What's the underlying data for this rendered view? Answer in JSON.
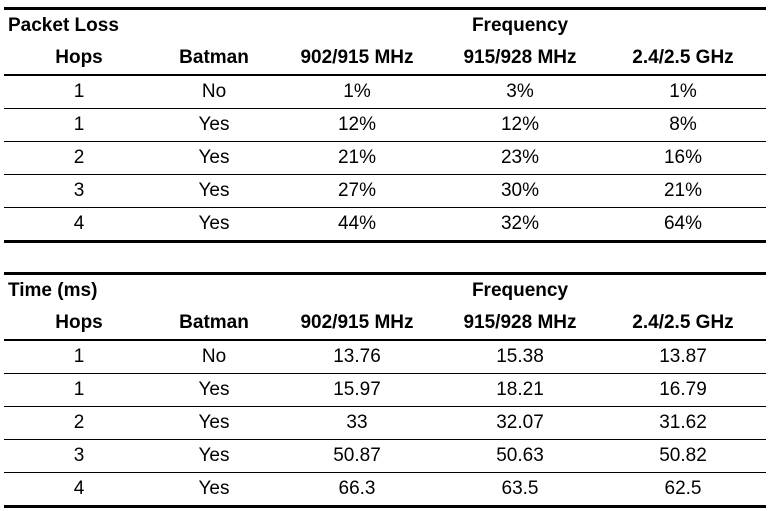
{
  "tables": [
    {
      "title": "Packet Loss",
      "group_header": "Frequency",
      "headers": [
        "Hops",
        "Batman",
        "902/915 MHz",
        "915/928 MHz",
        "2.4/2.5 GHz"
      ],
      "rows": [
        [
          "1",
          "No",
          "1%",
          "3%",
          "1%"
        ],
        [
          "1",
          "Yes",
          "12%",
          "12%",
          "8%"
        ],
        [
          "2",
          "Yes",
          "21%",
          "23%",
          "16%"
        ],
        [
          "3",
          "Yes",
          "27%",
          "30%",
          "21%"
        ],
        [
          "4",
          "Yes",
          "44%",
          "32%",
          "64%"
        ]
      ]
    },
    {
      "title": "Time (ms)",
      "group_header": "Frequency",
      "headers": [
        "Hops",
        "Batman",
        "902/915 MHz",
        "915/928 MHz",
        "2.4/2.5 GHz"
      ],
      "rows": [
        [
          "1",
          "No",
          "13.76",
          "15.38",
          "13.87"
        ],
        [
          "1",
          "Yes",
          "15.97",
          "18.21",
          "16.79"
        ],
        [
          "2",
          "Yes",
          "33",
          "32.07",
          "31.62"
        ],
        [
          "3",
          "Yes",
          "50.87",
          "50.63",
          "50.82"
        ],
        [
          "4",
          "Yes",
          "66.3",
          "63.5",
          "62.5"
        ]
      ]
    }
  ]
}
